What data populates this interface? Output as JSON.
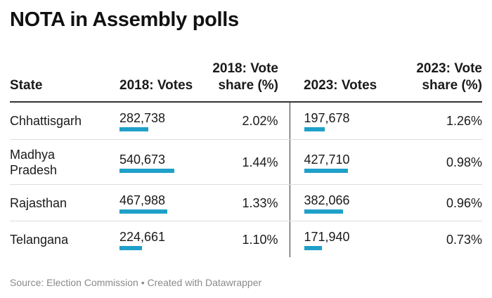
{
  "title": "NOTA in Assembly polls",
  "source": "Source: Election Commission • Created with Datawrapper",
  "colors": {
    "bar": "#1fa0c9",
    "text": "#1a1a1a",
    "muted": "#8a8a8a"
  },
  "chart_data": {
    "type": "table",
    "title": "NOTA in Assembly polls",
    "columns": [
      "State",
      "2018: Votes",
      "2018: Vote share (%)",
      "2023: Votes",
      "2023: Vote share (%)"
    ],
    "bar_max": 540673,
    "rows": [
      {
        "state": "Chhattisgarh",
        "votes_2018": 282738,
        "votes_2018_label": "282,738",
        "share_2018": "2.02%",
        "votes_2023": 197678,
        "votes_2023_label": "197,678",
        "share_2023": "1.26%"
      },
      {
        "state": "Madhya Pradesh",
        "votes_2018": 540673,
        "votes_2018_label": "540,673",
        "share_2018": "1.44%",
        "votes_2023": 427710,
        "votes_2023_label": "427,710",
        "share_2023": "0.98%"
      },
      {
        "state": "Rajasthan",
        "votes_2018": 467988,
        "votes_2018_label": "467,988",
        "share_2018": "1.33%",
        "votes_2023": 382066,
        "votes_2023_label": "382,066",
        "share_2023": "0.96%"
      },
      {
        "state": "Telangana",
        "votes_2018": 224661,
        "votes_2018_label": "224,661",
        "share_2018": "1.10%",
        "votes_2023": 171940,
        "votes_2023_label": "171,940",
        "share_2023": "0.73%"
      }
    ]
  }
}
